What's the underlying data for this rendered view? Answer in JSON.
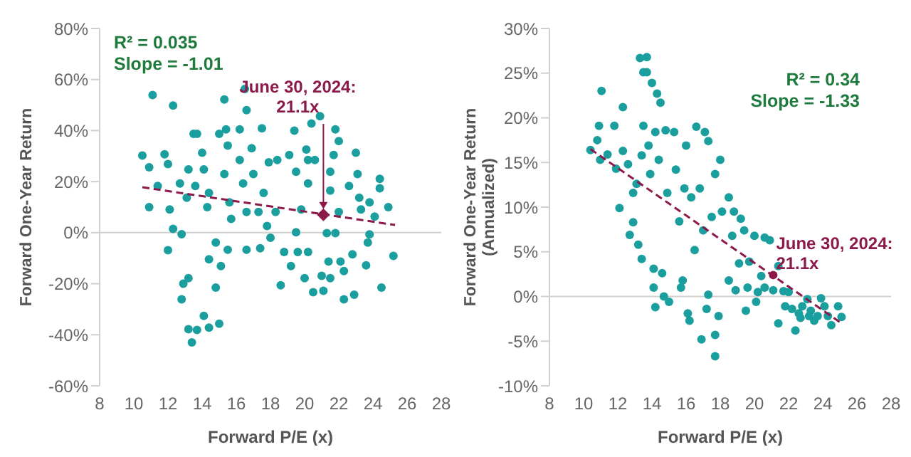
{
  "chart_data": [
    {
      "type": "scatter",
      "xlabel": "Forward P/E (x)",
      "ylabel": "Forward One-Year Return",
      "xlim": [
        8,
        28
      ],
      "xticks": [
        8,
        10,
        12,
        14,
        16,
        18,
        20,
        22,
        24,
        26,
        28
      ],
      "ylim": [
        -60,
        80
      ],
      "yticks": [
        {
          "value": -60,
          "label": "-60%"
        },
        {
          "value": -40,
          "label": "-40%"
        },
        {
          "value": -20,
          "label": "-20%"
        },
        {
          "value": 0,
          "label": "0%"
        },
        {
          "value": 20,
          "label": "20%"
        },
        {
          "value": 40,
          "label": "40%"
        },
        {
          "value": 60,
          "label": "60%"
        },
        {
          "value": 80,
          "label": "80%"
        }
      ],
      "marker": "circle",
      "grid": false,
      "ref_lines": [
        {
          "axis": "y",
          "value": 0,
          "color": "#d0d0d0"
        }
      ],
      "series": [
        {
          "color": "#1a9e9e",
          "x": [
            10.5,
            11.1,
            12.3,
            10.9,
            10.9,
            11.4,
            11.8,
            12.0,
            12.1,
            12.0,
            12.3,
            12.8,
            12.8,
            12.9,
            13.2,
            13.2,
            13.4,
            13.7,
            13.5,
            13.7,
            13.2,
            12.7,
            13.1,
            13.6,
            14.0,
            14.1,
            14.4,
            14.3,
            14.4,
            14.1,
            14.4,
            14.8,
            14.8,
            15.1,
            15.0,
            15.0,
            15.3,
            15.4,
            15.5,
            15.3,
            15.6,
            15.7,
            15.5,
            16.2,
            16.5,
            16.6,
            16.2,
            16.4,
            16.6,
            16.6,
            16.9,
            17.0,
            17.3,
            17.4,
            17.5,
            17.6,
            17.9,
            17.8,
            18.4,
            18.0,
            18.3,
            18.6,
            18.8,
            19.1,
            19.2,
            19.4,
            19.5,
            19.5,
            19.6,
            19.8,
            20.0,
            20.1,
            20.2,
            20.2,
            20.2,
            20.4,
            20.5,
            20.6,
            20.9,
            21.0,
            21.1,
            21.3,
            21.4,
            21.5,
            21.5,
            21.5,
            21.7,
            21.8,
            21.8,
            22.0,
            22.0,
            22.1,
            22.3,
            22.3,
            22.6,
            22.8,
            22.9,
            23.0,
            23.1,
            23.2,
            23.3,
            23.6,
            23.7,
            23.8,
            23.8,
            24.1,
            24.4,
            24.4,
            24.5,
            24.9,
            25.2
          ],
          "values": [
            30.2,
            53.9,
            49.8,
            25.6,
            10,
            18.3,
            30.7,
            26.9,
            9.1,
            -6.9,
            1.5,
            -0.6,
            -26.1,
            -20,
            -17.8,
            -37.8,
            -43,
            -38.1,
            38.7,
            38.7,
            24.8,
            19.3,
            13.7,
            18.3,
            31.3,
            24.8,
            15.6,
            10,
            -10.4,
            -32.6,
            -37.2,
            -21.5,
            -3.9,
            -13.1,
            -35.7,
            38.7,
            52.2,
            40.5,
            34.1,
            23,
            11.9,
            5.4,
            -6.7,
            40.5,
            56.3,
            48,
            28.5,
            19.3,
            8.1,
            -6.7,
            33.1,
            23,
            8.1,
            -6.1,
            40.9,
            15.6,
            27.6,
            2.6,
            28.5,
            -2,
            8.1,
            -20.6,
            -7.6,
            30.4,
            -13.1,
            40,
            23.9,
            0.2,
            -7.6,
            9.1,
            -17.8,
            32.6,
            28.5,
            19.3,
            -7.6,
            42.8,
            -23.3,
            28.5,
            45.6,
            -16.9,
            -22.8,
            -0.2,
            -11.3,
            -17.8,
            23.9,
            16.5,
            30.4,
            40.5,
            -0.2,
            35.9,
            8.1,
            -11.3,
            -15,
            -26.1,
            18.3,
            -8.5,
            -24.3,
            31.3,
            23,
            13.7,
            9.1,
            -12.8,
            -3.9,
            -0.7,
            11.9,
            6.3,
            21.1,
            17.4,
            -21.5,
            10,
            -9.1
          ]
        },
        {
          "type": "line",
          "color": "#8b1a4a",
          "line_style": "dashed",
          "marker": "none",
          "x": [
            10.5,
            25.3
          ],
          "values": [
            17.8,
            3
          ]
        },
        {
          "color": "#8b1a4a",
          "marker": "diamond",
          "x": [
            21.1
          ],
          "values": [
            7
          ]
        }
      ],
      "annotations": [
        "R² = 0.035",
        "Slope = -1.01",
        {
          "text": "June 30, 2024:\n21.1x",
          "x": 21.1,
          "y": 7
        }
      ]
    },
    {
      "type": "scatter",
      "xlabel": "Forward P/E (x)",
      "ylabel": "Forward One-Year Return (Annualized)",
      "xlim": [
        8,
        28
      ],
      "xticks": [
        8,
        10,
        12,
        14,
        16,
        18,
        20,
        22,
        24,
        26,
        28
      ],
      "ylim": [
        -10,
        30
      ],
      "yticks": [
        {
          "value": -10,
          "label": "-10%"
        },
        {
          "value": -5,
          "label": "-5%"
        },
        {
          "value": 0,
          "label": "0%"
        },
        {
          "value": 5,
          "label": "5%"
        },
        {
          "value": 10,
          "label": "10%"
        },
        {
          "value": 15,
          "label": "15%"
        },
        {
          "value": 20,
          "label": "20%"
        },
        {
          "value": 25,
          "label": "25%"
        },
        {
          "value": 30,
          "label": "30%"
        }
      ],
      "marker": "circle",
      "grid": false,
      "ref_lines": [
        {
          "axis": "y",
          "value": 0,
          "color": "#d0d0d0"
        }
      ],
      "series": [
        {
          "color": "#1a9e9e",
          "x": [
            10.4,
            10.9,
            11.05,
            10.8,
            10.97,
            11.4,
            11.8,
            11.9,
            12.1,
            12.3,
            12.3,
            12.6,
            12.7,
            12.9,
            12.9,
            13.1,
            13.2,
            13.3,
            13.7,
            13.5,
            13.5,
            13.4,
            13.7,
            13.4,
            13.8,
            13.9,
            14.0,
            14.1,
            14.1,
            14.2,
            14.3,
            14.2,
            14.5,
            14.4,
            14.6,
            14.7,
            14.8,
            14.9,
            15.0,
            15.3,
            15.4,
            15.6,
            15.7,
            15.8,
            15.9,
            16.0,
            16.1,
            16.2,
            16.3,
            16.5,
            16.6,
            16.8,
            16.9,
            17.0,
            17.1,
            17.2,
            17.3,
            17.3,
            17.5,
            17.7,
            17.7,
            17.7,
            17.9,
            18.0,
            18.1,
            18.5,
            18.5,
            18.7,
            18.8,
            18.9,
            19.1,
            19.2,
            19.4,
            19.5,
            19.6,
            19.7,
            20.0,
            20.1,
            20.2,
            20.4,
            20.6,
            20.6,
            20.9,
            21.1,
            21.4,
            21.4,
            21.7,
            21.8,
            22.0,
            22.2,
            22.4,
            22.6,
            22.7,
            22.8,
            23.1,
            23.2,
            23.3,
            23.5,
            23.7,
            23.9,
            24.1,
            24.3,
            24.5,
            24.9,
            25.1
          ],
          "values": [
            16.4,
            19.1,
            23,
            17.5,
            15.3,
            15.9,
            19.1,
            14.3,
            9.9,
            21.2,
            16.3,
            14.8,
            6.9,
            8.3,
            11.6,
            12.6,
            5.8,
            26.7,
            26.8,
            25.1,
            19.1,
            4.2,
            25.1,
            15.8,
            16.9,
            13.7,
            23.9,
            3.1,
            1,
            -1.2,
            22.7,
            18.4,
            21.7,
            15.3,
            2.6,
            0,
            18.6,
            11.6,
            -0.6,
            18.4,
            14.2,
            8.4,
            1,
            1.8,
            12.1,
            16.9,
            -1.9,
            -2.7,
            11.1,
            5.2,
            19,
            12.1,
            -4.8,
            7.4,
            18.4,
            -1.4,
            17.4,
            0.2,
            8.9,
            -6.7,
            -4.3,
            13.7,
            -2.2,
            15.3,
            9.5,
            11.1,
            1.8,
            6.8,
            9.5,
            0.7,
            3.7,
            8.7,
            7.4,
            -1.6,
            1,
            3.9,
            6.8,
            -0.6,
            0.5,
            2.3,
            6.6,
            1,
            6.3,
            0.7,
            3.4,
            -3,
            0.6,
            -1.1,
            0.5,
            -1.4,
            -3.8,
            -1.9,
            -2.4,
            -1.1,
            -0.3,
            -2.2,
            -1.6,
            -2.7,
            -2.2,
            -0.2,
            -1.1,
            -2.2,
            -3.2,
            -1.1,
            -2.3
          ]
        },
        {
          "type": "line",
          "color": "#8b1a4a",
          "line_style": "dashed",
          "marker": "none",
          "x": [
            10.4,
            25.1
          ],
          "values": [
            16.5,
            -3
          ]
        },
        {
          "color": "#8b1a4a",
          "marker": "circle",
          "x": [
            21.1
          ],
          "values": [
            2.4
          ]
        }
      ],
      "annotations": [
        "R² = 0.34",
        "Slope = -1.33",
        {
          "text": "June 30, 2024:\n21.1x",
          "x": 21.1,
          "y": 2.4
        }
      ]
    }
  ]
}
